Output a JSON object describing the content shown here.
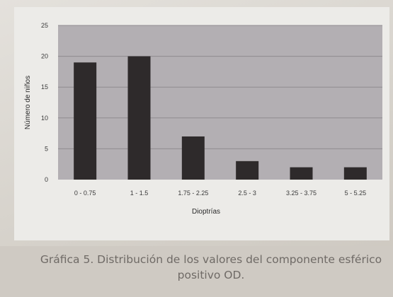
{
  "chart_data": {
    "type": "bar",
    "categories": [
      "0 - 0.75",
      "1 - 1.5",
      "1.75 - 2.25",
      "2.5 - 3",
      "3.25 - 3.75",
      "5 - 5.25"
    ],
    "values": [
      19,
      20,
      7,
      3,
      2,
      2
    ],
    "xlabel": "Dioptrías",
    "ylabel": "Número de niños",
    "ylim": [
      0,
      25
    ],
    "yticks": [
      0,
      5,
      10,
      15,
      20,
      25
    ],
    "grid": true,
    "legend": false,
    "colors": {
      "plot_bg": "#b3afb3",
      "bar": "#2e2a2b",
      "grid": "#8f8b8f"
    }
  },
  "caption": {
    "text": "Gráfica 5. Distribución de los valores del componente esférico positivo OD."
  }
}
